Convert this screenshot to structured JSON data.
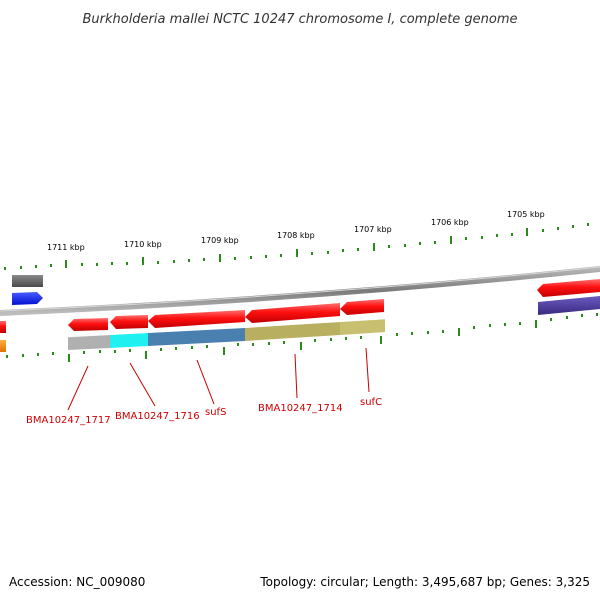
{
  "title": "Burkholderia mallei NCTC 10247 chromosome I, complete genome",
  "footer": {
    "accession": "Accession: NC_009080",
    "topology": "Topology: circular; Length: 3,495,687 bp; Genes: 3,325"
  },
  "ticks": [
    "1711 kbp",
    "1710 kbp",
    "1709 kbp",
    "1708 kbp",
    "1707 kbp",
    "1706 kbp",
    "1705 kbp"
  ],
  "genes": [
    "BMA10247_1717",
    "BMA10247_1716",
    "sufS",
    "BMA10247_1714",
    "sufC"
  ],
  "colors": {
    "backbone": "#8a8a8a",
    "forward_cds": "#ff1010",
    "tick": "#2a8a1a",
    "label": "#cc0000",
    "gray_feature": "#6a6a6a",
    "blue_feature": "#1020ff",
    "purple_feature": "#4a3a9a",
    "orange_feature": "#ff8800",
    "cyan_feature": "#20f0f0",
    "steelblue_feature": "#4a80b0",
    "khaki_feature": "#b8b060",
    "lightgray_feature": "#b0b0b0"
  }
}
